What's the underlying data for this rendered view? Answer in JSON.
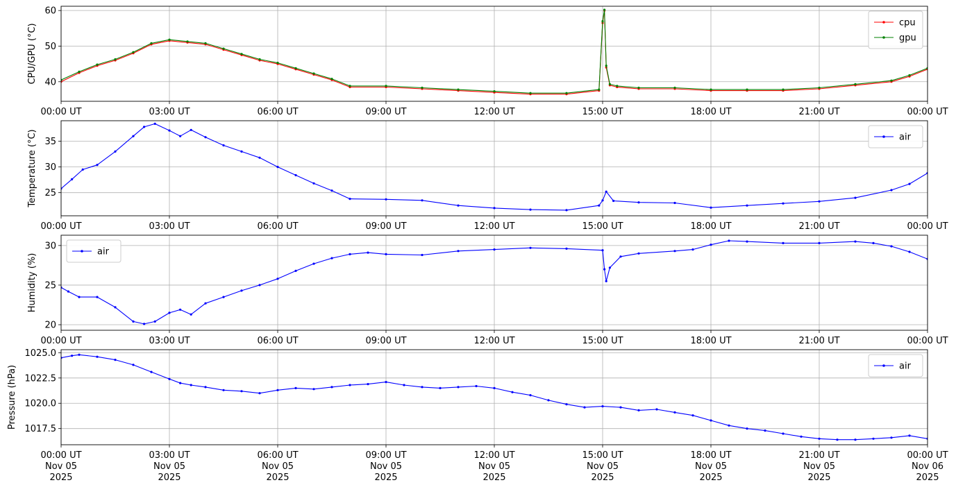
{
  "chart_data": [
    {
      "type": "line",
      "ylabel": "CPU/GPU (°C)",
      "ylim": [
        34.5,
        61.2
      ],
      "yticks": [
        40,
        50,
        60
      ],
      "xlim": [
        0,
        24
      ],
      "xtick_labels": [
        "00:00 UT",
        "03:00 UT",
        "06:00 UT",
        "09:00 UT",
        "12:00 UT",
        "15:00 UT",
        "18:00 UT",
        "21:00 UT",
        "00:00 UT"
      ],
      "grid": true,
      "legend_position": "top-right",
      "series": [
        {
          "name": "cpu",
          "color": "#ff0000",
          "x": [
            0,
            0.5,
            1.0,
            1.5,
            2.0,
            2.5,
            3.0,
            3.5,
            4.0,
            4.5,
            5.0,
            5.5,
            6.0,
            6.5,
            7.0,
            7.5,
            8.0,
            9.0,
            10.0,
            11.0,
            12.0,
            13.0,
            14.0,
            14.9,
            15.0,
            15.05,
            15.1,
            15.2,
            15.4,
            16.0,
            17.0,
            18.0,
            19.0,
            20.0,
            21.0,
            22.0,
            23.0,
            23.5,
            24.0
          ],
          "y": [
            40,
            42.5,
            44.5,
            46,
            48,
            50.5,
            51.5,
            51,
            50.5,
            49,
            47.5,
            46,
            45,
            43.5,
            42,
            40.5,
            38.5,
            38.5,
            38,
            37.5,
            37,
            36.5,
            36.5,
            37.5,
            56.5,
            60,
            44,
            39,
            38.5,
            38,
            38,
            37.5,
            37.5,
            37.5,
            38,
            39,
            40,
            41.5,
            43.5
          ]
        },
        {
          "name": "gpu",
          "color": "#008000",
          "x": [
            0,
            0.5,
            1.0,
            1.5,
            2.0,
            2.5,
            3.0,
            3.5,
            4.0,
            4.5,
            5.0,
            5.5,
            6.0,
            6.5,
            7.0,
            7.5,
            8.0,
            9.0,
            10.0,
            11.0,
            12.0,
            13.0,
            14.0,
            14.9,
            15.0,
            15.05,
            15.1,
            15.2,
            15.4,
            16.0,
            17.0,
            18.0,
            19.0,
            20.0,
            21.0,
            22.0,
            23.0,
            23.5,
            24.0
          ],
          "y": [
            40.5,
            42.8,
            44.8,
            46.3,
            48.3,
            50.8,
            51.8,
            51.3,
            50.8,
            49.3,
            47.8,
            46.3,
            45.3,
            43.8,
            42.3,
            40.8,
            38.8,
            38.8,
            38.3,
            37.8,
            37.3,
            36.8,
            36.8,
            37.8,
            57,
            60.2,
            44.5,
            39.3,
            38.8,
            38.3,
            38.3,
            37.8,
            37.8,
            37.8,
            38.3,
            39.3,
            40.3,
            41.8,
            43.8
          ]
        }
      ]
    },
    {
      "type": "line",
      "ylabel": "Temperature (°C)",
      "ylim": [
        20.5,
        39
      ],
      "yticks": [
        25,
        30,
        35
      ],
      "xlim": [
        0,
        24
      ],
      "xtick_labels": [
        "00:00 UT",
        "03:00 UT",
        "06:00 UT",
        "09:00 UT",
        "12:00 UT",
        "15:00 UT",
        "18:00 UT",
        "21:00 UT",
        "00:00 UT"
      ],
      "grid": true,
      "legend_position": "top-right",
      "series": [
        {
          "name": "air",
          "color": "#0000ff",
          "x": [
            0,
            0.3,
            0.6,
            1.0,
            1.5,
            2.0,
            2.3,
            2.6,
            3.0,
            3.3,
            3.6,
            4.0,
            4.5,
            5.0,
            5.5,
            6.0,
            6.5,
            7.0,
            7.5,
            8.0,
            9.0,
            10.0,
            11.0,
            12.0,
            13.0,
            14.0,
            14.9,
            15.0,
            15.1,
            15.3,
            16.0,
            17.0,
            18.0,
            19.0,
            20.0,
            21.0,
            22.0,
            23.0,
            23.5,
            24.0
          ],
          "y": [
            25.8,
            27.6,
            29.5,
            30.4,
            33,
            36,
            37.8,
            38.4,
            37.1,
            36,
            37.2,
            35.8,
            34.2,
            33,
            31.8,
            30,
            28.4,
            26.8,
            25.4,
            23.8,
            23.7,
            23.5,
            22.5,
            22,
            21.7,
            21.6,
            22.5,
            23.5,
            25.2,
            23.4,
            23.1,
            23,
            22.1,
            22.5,
            22.9,
            23.3,
            24,
            25.5,
            26.7,
            28.8
          ]
        }
      ]
    },
    {
      "type": "line",
      "ylabel": "Humidity (%)",
      "ylim": [
        19.3,
        31.3
      ],
      "yticks": [
        20,
        25,
        30
      ],
      "xlim": [
        0,
        24
      ],
      "xtick_labels": [
        "00:00 UT",
        "03:00 UT",
        "06:00 UT",
        "09:00 UT",
        "12:00 UT",
        "15:00 UT",
        "18:00 UT",
        "21:00 UT",
        "00:00 UT"
      ],
      "grid": true,
      "legend_position": "top-left",
      "series": [
        {
          "name": "air",
          "color": "#0000ff",
          "x": [
            0,
            0.2,
            0.5,
            1.0,
            1.5,
            2.0,
            2.3,
            2.6,
            3.0,
            3.3,
            3.6,
            4.0,
            4.5,
            5.0,
            5.5,
            6.0,
            6.5,
            7.0,
            7.5,
            8.0,
            8.5,
            9.0,
            10.0,
            11.0,
            12.0,
            13.0,
            14.0,
            15.0,
            15.05,
            15.1,
            15.2,
            15.5,
            16.0,
            17.0,
            17.5,
            18.0,
            18.5,
            19.0,
            20.0,
            21.0,
            22.0,
            22.5,
            23.0,
            23.5,
            24.0
          ],
          "y": [
            24.7,
            24.2,
            23.5,
            23.5,
            22.2,
            20.4,
            20.1,
            20.4,
            21.5,
            21.9,
            21.3,
            22.7,
            23.5,
            24.3,
            25,
            25.8,
            26.8,
            27.7,
            28.4,
            28.9,
            29.1,
            28.9,
            28.8,
            29.3,
            29.5,
            29.7,
            29.6,
            29.4,
            27,
            25.5,
            27.2,
            28.6,
            29,
            29.3,
            29.5,
            30.1,
            30.6,
            30.5,
            30.3,
            30.3,
            30.5,
            30.3,
            29.9,
            29.2,
            28.3
          ]
        }
      ]
    },
    {
      "type": "line",
      "ylabel": "Pressure (hPa)",
      "ylim": [
        1015.9,
        1025.3
      ],
      "yticks": [
        1017.5,
        1020.0,
        1022.5,
        1025.0
      ],
      "ytick_labels": [
        "1017.5",
        "1020.0",
        "1022.5",
        "1025.0"
      ],
      "xlim": [
        0,
        24
      ],
      "xtick_labels": [
        "00:00 UT\nNov 05\n2025",
        "03:00 UT\nNov 05\n2025",
        "06:00 UT\nNov 05\n2025",
        "09:00 UT\nNov 05\n2025",
        "12:00 UT\nNov 05\n2025",
        "15:00 UT\nNov 05\n2025",
        "18:00 UT\nNov 05\n2025",
        "21:00 UT\nNov 05\n2025",
        "00:00 UT\nNov 06\n2025"
      ],
      "grid": true,
      "legend_position": "top-right",
      "series": [
        {
          "name": "air",
          "color": "#0000ff",
          "x": [
            0,
            0.3,
            0.5,
            1.0,
            1.5,
            2.0,
            2.5,
            3.0,
            3.3,
            3.6,
            4.0,
            4.5,
            5.0,
            5.5,
            6.0,
            6.5,
            7.0,
            7.5,
            8.0,
            8.5,
            9.0,
            9.5,
            10.0,
            10.5,
            11.0,
            11.5,
            12.0,
            12.5,
            13.0,
            13.5,
            14.0,
            14.5,
            15.0,
            15.5,
            16.0,
            16.5,
            17.0,
            17.5,
            18.0,
            18.5,
            19.0,
            19.5,
            20.0,
            20.5,
            21.0,
            21.5,
            22.0,
            22.5,
            23.0,
            23.5,
            24.0
          ],
          "y": [
            1024.5,
            1024.7,
            1024.8,
            1024.6,
            1024.3,
            1023.8,
            1023.1,
            1022.4,
            1022.0,
            1021.8,
            1021.6,
            1021.3,
            1021.2,
            1021.0,
            1021.3,
            1021.5,
            1021.4,
            1021.6,
            1021.8,
            1021.9,
            1022.1,
            1021.8,
            1021.6,
            1021.5,
            1021.6,
            1021.7,
            1021.5,
            1021.1,
            1020.8,
            1020.3,
            1019.9,
            1019.6,
            1019.7,
            1019.6,
            1019.3,
            1019.4,
            1019.1,
            1018.8,
            1018.3,
            1017.8,
            1017.5,
            1017.3,
            1017.0,
            1016.7,
            1016.5,
            1016.4,
            1016.4,
            1016.5,
            1016.6,
            1016.8,
            1016.5
          ]
        }
      ]
    }
  ]
}
